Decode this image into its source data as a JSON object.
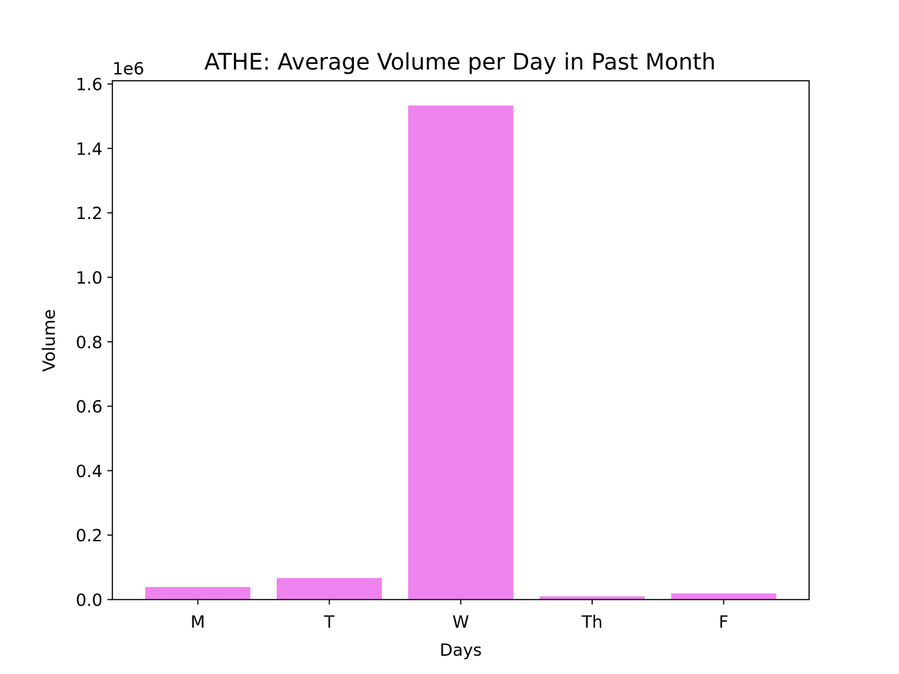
{
  "chart_data": {
    "type": "bar",
    "title": "ATHE: Average Volume per Day in Past Month",
    "xlabel": "Days",
    "ylabel": "Volume",
    "y_offset_text": "1e6",
    "categories": [
      "M",
      "T",
      "W",
      "Th",
      "F"
    ],
    "values": [
      39000,
      67000,
      1533000,
      10000,
      19000
    ],
    "ylim": [
      0,
      1610000
    ],
    "yticks": [
      0,
      200000,
      400000,
      600000,
      800000,
      1000000,
      1200000,
      1400000,
      1600000
    ],
    "ytick_labels": [
      "0.0",
      "0.2",
      "0.4",
      "0.6",
      "0.8",
      "1.0",
      "1.2",
      "1.4",
      "1.6"
    ],
    "grid": false,
    "legend": "none",
    "bar_color": "#ee82ee"
  }
}
